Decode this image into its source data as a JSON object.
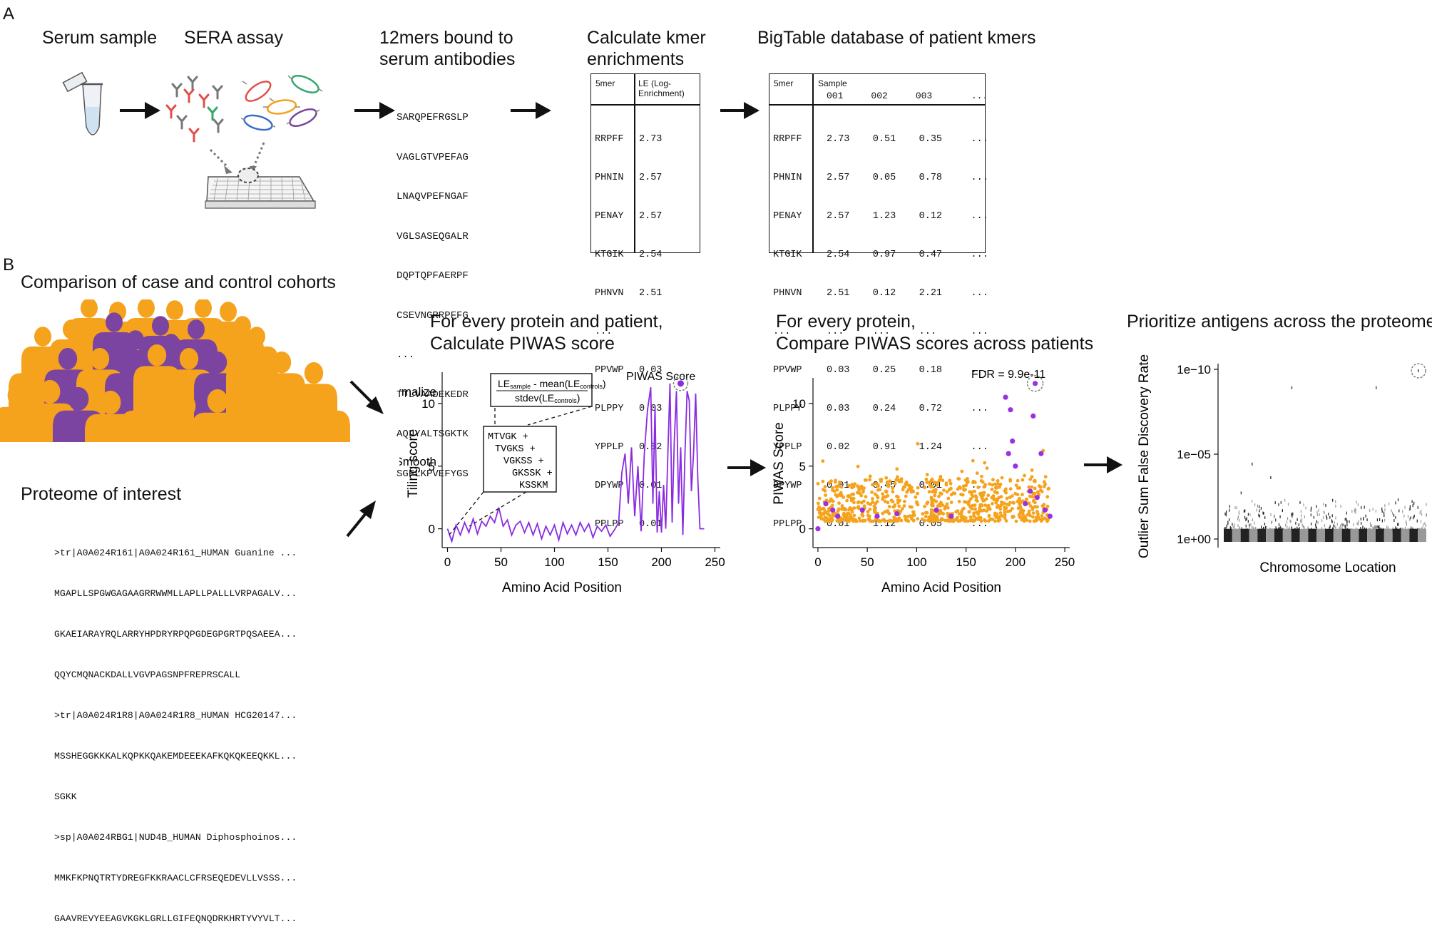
{
  "panels": {
    "a": "A",
    "b": "B"
  },
  "section_a": {
    "steps": [
      {
        "title": "Serum sample"
      },
      {
        "title": "SERA assay"
      },
      {
        "title": "12mers bound to\nserum antibodies"
      },
      {
        "title": "Calculate kmer\nenrichments"
      },
      {
        "title": "BigTable database of patient kmers"
      }
    ],
    "peptides_12mer": [
      "SARQPEFRGSLP",
      "VAGLGTVPEFAG",
      "LNAQVPEFNGAF",
      "VGLSASEQGALR",
      "DQPTQPFAERPF",
      "CSEVNGRRPFFG",
      "...",
      "TTLVAADEKEDR",
      "AQLYALTSGKTK",
      "SGFLKPVEFYGS"
    ],
    "enrichment_table": {
      "col1_header": "5mer",
      "col2_header": "LE (Log-\nEnrichment)",
      "kmers": [
        "RRPFF",
        "PHNIN",
        "PENAY",
        "KTGIK",
        "PHNVN",
        "...",
        "PPVWP",
        "PLPPY",
        "YPPLP",
        "DPYWP",
        "PPLPP"
      ],
      "le_values": [
        "2.73",
        "2.57",
        "2.57",
        "2.54",
        "2.51",
        "",
        "0.03",
        "0.03",
        "0.02",
        "0.01",
        "0.01"
      ]
    },
    "bigtable": {
      "col1_header": "5mer",
      "sample_header": "Sample",
      "sample_ids": "001     002     003       ...",
      "kmers": [
        "RRPFF",
        "PHNIN",
        "PENAY",
        "KTGIK",
        "PHNVN",
        "...",
        "PPVWP",
        "PLPPY",
        "YPPLP",
        "DPYWP",
        "PPLPP"
      ],
      "values": [
        "2.73    0.51    0.35     ...",
        "2.57    0.05    0.78     ...",
        "2.57    1.23    0.12     ...",
        "2.54    0.97    0.47     ...",
        "2.51    0.12    2.21     ...",
        "...     ...     ...      ...",
        "0.03    0.25    0.18     ...",
        "0.03    0.24    0.72     ...",
        "0.02    0.91    1.24     ...",
        "0.01    0.45    0.01     ...",
        "0.01    1.12    0.05     ..."
      ]
    }
  },
  "section_b": {
    "cohort_title": "Comparison of case and control cohorts",
    "proteome_title": "Proteome of interest",
    "proteome_lines": [
      ">tr|A0A024R161|A0A024R161_HUMAN Guanine ...",
      "MGAPLLSPGWGAGAAGRRWWMLLAPLLPALLLVRPAGALV...",
      "GKAEIARAYRQLARRYHPDRYRPQPGDEGPGRTPQSAEEA...",
      "QQYCMQNACKDALLVGVPAGSNPFREPRSCALL",
      ">tr|A0A024R1R8|A0A024R1R8_HUMAN HCG20147...",
      "MSSHEGGKKKALKQPKKQAKEMDEEEKAFKQKQKEEQKKL...",
      "SGKK",
      ">sp|A0A024RBG1|NUD4B_HUMAN Diphosphoinos...",
      "MMKFKPNQTRTYDREGFKKRAACLCFRSEQEDEVLLVSSS...",
      "GAAVREVYEEAGVKGKLGRLLGIFEQNQDRKHRTYVYVLT..."
    ],
    "colors": {
      "case": "#7b44a0",
      "control": "#f5a21c",
      "line": "#8a2be2",
      "point_orange": "#f5a21c",
      "point_purple": "#9b30e0"
    },
    "tiling_chart": {
      "title": "For every protein and patient,\nCalculate PIWAS score",
      "ylabel": "Tiling score",
      "xlabel": "Amino Acid Position",
      "xticks": [
        "0",
        "50",
        "100",
        "150",
        "200",
        "250"
      ],
      "yticks": [
        "0",
        "5",
        "10"
      ],
      "normalize_label": "Normalize",
      "smooth_label": "Smooth",
      "piwas_label": "PIWAS Score",
      "formula_num_le": "LE",
      "formula_num_sample": "sample",
      "formula_num_mean": " - mean(LE",
      "formula_num_controls": "controls",
      "formula_num_close": ")",
      "formula_den_stdev": "stdev(LE",
      "formula_den_controls": "controls",
      "formula_den_close": ")",
      "smooth_lines": [
        "MTVGK +",
        "TVGKS +",
        "VGKSS +",
        "GKSSK +",
        "KSSKM"
      ]
    },
    "piwas_chart": {
      "title": "For every protein,\nCompare PIWAS scores across patients",
      "ylabel": "PIWAS Score",
      "xlabel": "Amino Acid Position",
      "xticks": [
        "0",
        "50",
        "100",
        "150",
        "200",
        "250"
      ],
      "yticks": [
        "0",
        "5",
        "10"
      ],
      "fdr_label": "FDR = 9.9e-11"
    },
    "manhattan_chart": {
      "title": "Prioritize antigens across the proteome",
      "ylabel": "Outlier Sum False Discovery Rate",
      "xlabel": "Chromosome Location",
      "yticks": [
        "1e−10",
        "1e−05",
        "1e+00"
      ]
    }
  },
  "chart_data": [
    {
      "type": "line",
      "title": "For every protein and patient, Calculate PIWAS score",
      "xlabel": "Amino Acid Position",
      "ylabel": "Tiling score",
      "xlim": [
        -5,
        255
      ],
      "ylim": [
        -1.5,
        12.5
      ],
      "x": [
        0,
        4,
        8,
        12,
        16,
        20,
        24,
        28,
        32,
        36,
        40,
        44,
        48,
        52,
        56,
        60,
        64,
        68,
        72,
        76,
        80,
        84,
        88,
        92,
        96,
        100,
        104,
        108,
        112,
        116,
        120,
        124,
        128,
        132,
        136,
        140,
        144,
        148,
        152,
        156,
        160,
        163,
        166,
        169,
        172,
        175,
        178,
        181,
        184,
        187,
        190,
        192,
        194,
        196,
        198,
        200,
        202,
        204,
        206,
        208,
        210,
        212,
        214,
        216,
        218,
        220,
        222,
        224,
        226,
        228,
        230,
        232,
        234,
        236,
        238,
        240
      ],
      "y": [
        0,
        -1,
        0.3,
        -0.5,
        0.5,
        -0.3,
        0.8,
        -0.4,
        0.6,
        0.2,
        1,
        0.5,
        1.7,
        0.2,
        0.7,
        -0.5,
        0.3,
        0.6,
        -0.3,
        0.5,
        -0.5,
        0.4,
        -0.8,
        0.2,
        -0.5,
        0.3,
        -0.9,
        0.5,
        -0.4,
        0.3,
        -0.5,
        0.5,
        -0.2,
        0.4,
        -0.7,
        0.2,
        -0.2,
        0.3,
        -0.6,
        -0.1,
        0.5,
        4.5,
        6,
        2,
        6.5,
        1,
        5,
        -0.2,
        6,
        9.5,
        11.3,
        2,
        9.8,
        -0.3,
        3,
        -0.3,
        3.5,
        0,
        6,
        11.6,
        0.5,
        7,
        11,
        2,
        6.5,
        -0.5,
        6,
        11,
        10.2,
        3,
        6,
        10.8,
        4,
        0,
        0,
        0
      ]
    },
    {
      "type": "scatter",
      "title": "For every protein, Compare PIWAS scores across patients",
      "xlabel": "Amino Acid Position",
      "ylabel": "PIWAS Score",
      "xlim": [
        -5,
        255
      ],
      "ylim": [
        -1.5,
        12.5
      ],
      "annotation": "FDR = 9.9e-11",
      "series": [
        {
          "name": "control/all (orange)",
          "description": "dense cloud of ~800 points, y mostly 0.5-4, spread across x 0-235"
        },
        {
          "name": "case (purple)",
          "points": [
            [
              0,
              0
            ],
            [
              8,
              2
            ],
            [
              15,
              1.5
            ],
            [
              20,
              1
            ],
            [
              45,
              1.5
            ],
            [
              60,
              1
            ],
            [
              80,
              1.2
            ],
            [
              120,
              1.5
            ],
            [
              135,
              1
            ],
            [
              190,
              10.5
            ],
            [
              193,
              6
            ],
            [
              195,
              9.5
            ],
            [
              197,
              7
            ],
            [
              200,
              5
            ],
            [
              210,
              2
            ],
            [
              215,
              3
            ],
            [
              218,
              9
            ],
            [
              220,
              11.6
            ],
            [
              222,
              2.5
            ],
            [
              226,
              6
            ],
            [
              230,
              1.5
            ],
            [
              235,
              1
            ]
          ]
        }
      ]
    },
    {
      "type": "scatter",
      "title": "Prioritize antigens across the proteome",
      "xlabel": "Chromosome Location",
      "ylabel": "Outlier Sum False Discovery Rate",
      "yscale": "log",
      "yticks": [
        "1e-10",
        "1e-05",
        "1e+00"
      ],
      "highlighted_points": [
        {
          "chrom_index": 8,
          "y": "1e-09"
        },
        {
          "chrom_index": 18,
          "y": "1e-09"
        },
        {
          "chrom_index": 23,
          "y": "1e-10"
        }
      ],
      "description": "Manhattan plot: alternating black/grey dense points near 1e+00 across 24 chromosome bands, few outliers"
    }
  ]
}
